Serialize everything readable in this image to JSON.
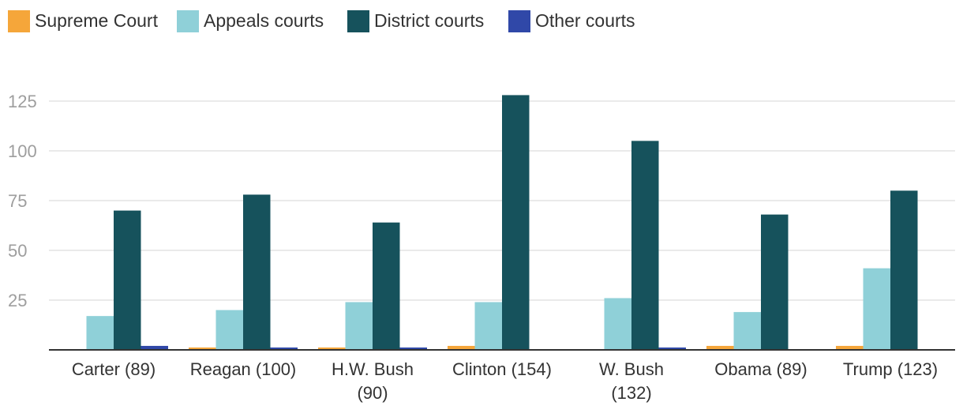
{
  "chart_data": {
    "type": "bar",
    "title": "",
    "xlabel": "",
    "ylabel": "",
    "categories": [
      [
        "Carter (89)"
      ],
      [
        "Reagan (100)"
      ],
      [
        "H.W. Bush",
        "(90)"
      ],
      [
        "Clinton (154)"
      ],
      [
        "W. Bush",
        "(132)"
      ],
      [
        "Obama (89)"
      ],
      [
        "Trump (123)"
      ]
    ],
    "series": [
      {
        "name": "Supreme Court",
        "color": "#f5a63a",
        "values": [
          0,
          1,
          1,
          2,
          0,
          2,
          2
        ]
      },
      {
        "name": "Appeals courts",
        "color": "#8fd0d8",
        "values": [
          17,
          20,
          24,
          24,
          26,
          19,
          41
        ]
      },
      {
        "name": "District courts",
        "color": "#16525c",
        "values": [
          70,
          78,
          64,
          128,
          105,
          68,
          80
        ]
      },
      {
        "name": "Other courts",
        "color": "#3048a8",
        "values": [
          2,
          1,
          1,
          0,
          1,
          0,
          0
        ]
      }
    ],
    "yticks": [
      25,
      50,
      75,
      100,
      125
    ],
    "ylim": [
      0,
      135
    ],
    "grid": true,
    "legend": "top-left"
  }
}
